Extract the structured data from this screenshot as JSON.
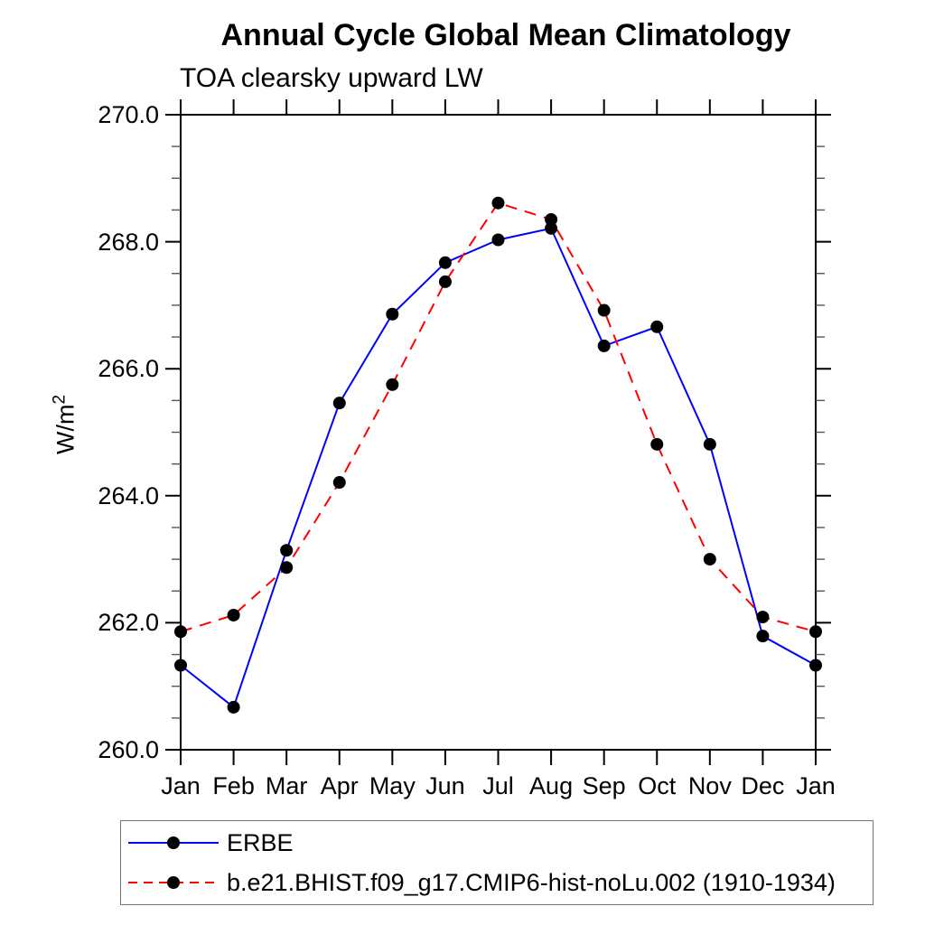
{
  "header": {
    "title": "Annual Cycle Global Mean Climatology",
    "subtitle": "TOA clearsky upward LW"
  },
  "chart_data": {
    "type": "line",
    "title": "Annual Cycle Global Mean Climatology",
    "subtitle": "TOA clearsky upward LW",
    "xlabel": "",
    "ylabel": "W/m^2",
    "ylabel_base": "W/m",
    "ylabel_exp": "2",
    "ylim": [
      260.0,
      270.0
    ],
    "ytick_major": 2.0,
    "ytick_minor": 0.5,
    "ytick_labels": [
      "270.0",
      "268.0",
      "266.0",
      "264.0",
      "262.0",
      "260.0"
    ],
    "grid": false,
    "legend_position": "bottom-left",
    "axis_color": "#000000",
    "minor_tick_color": "#555555",
    "categories": [
      "Jan",
      "Feb",
      "Mar",
      "Apr",
      "May",
      "Jun",
      "Jul",
      "Aug",
      "Sep",
      "Oct",
      "Nov",
      "Dec",
      "Jan"
    ],
    "series": [
      {
        "name": "ERBE",
        "color": "#0000ff",
        "line_style": "solid",
        "marker": "circle",
        "marker_color": "#000000",
        "values": [
          261.33,
          260.67,
          263.14,
          265.46,
          266.86,
          267.67,
          268.03,
          268.21,
          266.36,
          266.66,
          264.81,
          261.79,
          261.33
        ]
      },
      {
        "name": "b.e21.BHIST.f09_g17.CMIP6-hist-noLu.002 (1910-1934)",
        "color": "#ff0000",
        "line_style": "dashed",
        "marker": "circle",
        "marker_color": "#000000",
        "values": [
          261.86,
          262.12,
          262.87,
          264.21,
          265.75,
          267.37,
          268.61,
          268.35,
          266.92,
          264.81,
          263.0,
          262.09,
          261.86
        ]
      }
    ]
  }
}
